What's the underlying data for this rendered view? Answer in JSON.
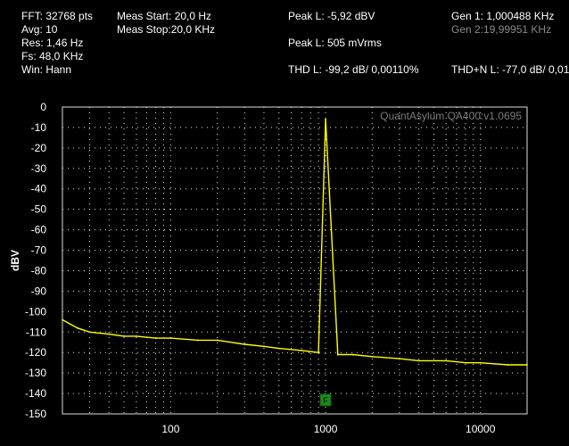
{
  "header": {
    "fft": "FFT: 32768 pts",
    "avg": "Avg: 10",
    "res": "Res: 1,46 Hz",
    "fs": "Fs: 48,0 KHz",
    "win": "Win: Hann",
    "meas_start": "Meas Start: 20,0 Hz",
    "meas_stop": "Meas Stop:20,0 KHz",
    "peak_l_dbv": "Peak L: -5,92 dBV",
    "peak_l_mvrms": "Peak L: 505 mVrms",
    "thd_l": "THD L: -99,2 dB/ 0,00110%",
    "gen1": "Gen 1: 1,000488 KHz",
    "gen2": "Gen 2:19,99951 KHz",
    "thdn_l": "THD+N L: -77,0 dB/ 0,01"
  },
  "chart_data": {
    "type": "line",
    "title": "",
    "watermark": "QuantAsylum QA400:v1.0695",
    "xlabel": "",
    "ylabel": "dBV",
    "xscale": "log",
    "xlim": [
      20,
      20000
    ],
    "ylim": [
      -150,
      0
    ],
    "x_ticks": [
      100,
      1000,
      10000
    ],
    "x_tick_labels": [
      "100",
      "1000",
      "10000"
    ],
    "y_ticks": [
      0,
      -10,
      -20,
      -30,
      -40,
      -50,
      -60,
      -70,
      -80,
      -90,
      -100,
      -110,
      -120,
      -130,
      -140,
      -150
    ],
    "y_tick_labels": [
      "0",
      "-10",
      "-20",
      "-30",
      "-40",
      "-50",
      "-60",
      "-70",
      "-80",
      "-90",
      "-100",
      "-110",
      "-120",
      "-130",
      "-140",
      "-150"
    ],
    "grid": true,
    "marker": {
      "x": 1000,
      "y": -143,
      "label": "F",
      "color": "#1a8a1a"
    },
    "series": [
      {
        "color": "#ffff00",
        "x": [
          20,
          25,
          30,
          40,
          50,
          60,
          80,
          100,
          150,
          200,
          300,
          400,
          500,
          700,
          900,
          1000,
          1200,
          1500,
          2000,
          3000,
          4000,
          6000,
          8000,
          10000,
          15000,
          20000
        ],
        "y": [
          -104,
          -108,
          -110,
          -111,
          -112,
          -112,
          -113,
          -113,
          -114,
          -114,
          -116,
          -117,
          -118,
          -119,
          -120,
          -6,
          -121,
          -121,
          -122,
          -123,
          -124,
          -124,
          -125,
          -125,
          -126,
          -126
        ]
      }
    ]
  }
}
